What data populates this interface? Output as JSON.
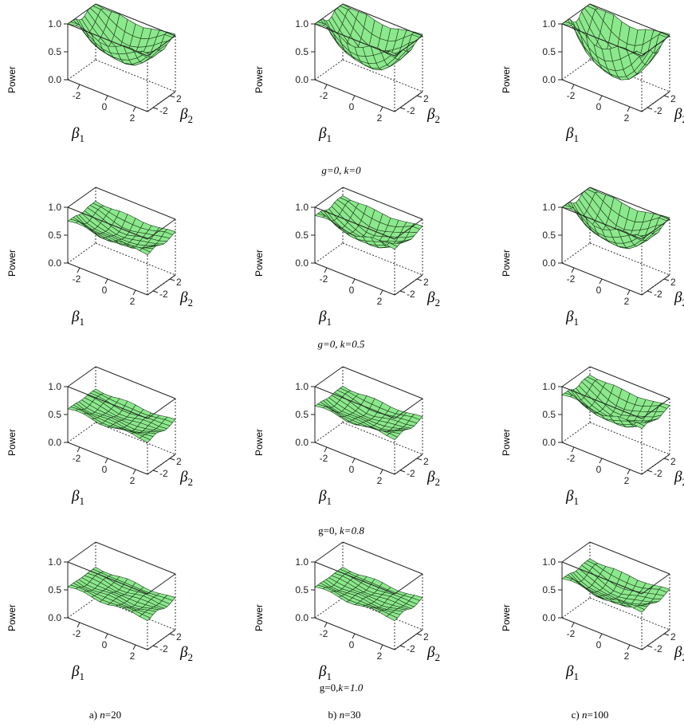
{
  "chart_data": {
    "type": "surface-grid",
    "zlabel": "Power",
    "xlabel_symbol": "β",
    "xlabel_sub": "1",
    "ylabel_symbol": "β",
    "ylabel_sub": "2",
    "z_ticks": [
      "0.0",
      "0.5",
      "1.0"
    ],
    "x_ticks": [
      "-2",
      "0",
      "2"
    ],
    "y_ticks": [
      "2",
      "-2"
    ],
    "zlim": [
      0,
      1
    ],
    "surface_color": "#8ce88c",
    "mesh_color": "#1a3a1a",
    "rows": [
      {
        "label_g": "g=0, ",
        "label_k": "k=0",
        "panels": [
          {
            "depth": 0.55,
            "rim": 1.0
          },
          {
            "depth": 0.65,
            "rim": 1.0
          },
          {
            "depth": 0.85,
            "rim": 1.0
          }
        ]
      },
      {
        "label_g": "g=0, ",
        "label_k": "k=0.5",
        "panels": [
          {
            "depth": 0.22,
            "rim": 0.75
          },
          {
            "depth": 0.35,
            "rim": 0.85
          },
          {
            "depth": 0.55,
            "rim": 1.0
          }
        ]
      },
      {
        "label_g": "g=0, ",
        "label_k": "k=0.8",
        "panels": [
          {
            "depth": 0.1,
            "rim": 0.6
          },
          {
            "depth": 0.15,
            "rim": 0.65
          },
          {
            "depth": 0.35,
            "rim": 0.85
          }
        ]
      },
      {
        "label_g": "g=0,",
        "label_k": "k=1.0",
        "panels": [
          {
            "depth": 0.05,
            "rim": 0.55
          },
          {
            "depth": 0.06,
            "rim": 0.55
          },
          {
            "depth": 0.25,
            "rim": 0.7
          }
        ]
      }
    ],
    "columns": [
      {
        "prefix": "a) ",
        "var": "n",
        "value": "=20"
      },
      {
        "prefix": "b) ",
        "var": "n",
        "value": "=30"
      },
      {
        "prefix": "c) ",
        "var": "n",
        "value": "=100"
      }
    ]
  }
}
